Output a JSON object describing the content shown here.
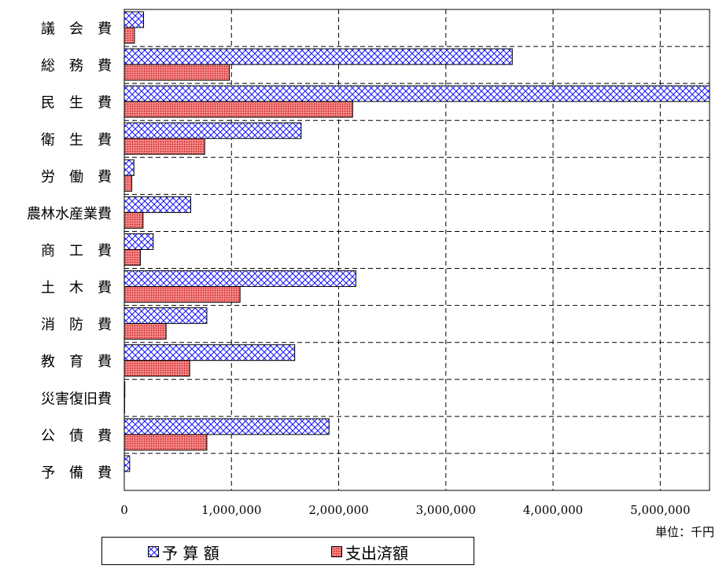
{
  "chart_data": {
    "type": "bar",
    "orientation": "horizontal",
    "categories": [
      "議　会　費",
      "総　務　費",
      "民　生　費",
      "衛　生　費",
      "労　働　費",
      "農林水産業費",
      "商　工　費",
      "土　木　費",
      "消　防　費",
      "教　育　費",
      "災害復旧費",
      "公　債　費",
      "予　備　費"
    ],
    "series": [
      {
        "name": "予 算 額",
        "pattern": "crosshatch",
        "color": "#1a1aff",
        "values": [
          180000,
          3620000,
          5460000,
          1650000,
          90000,
          620000,
          270000,
          2160000,
          770000,
          1590000,
          5000,
          1910000,
          50000
        ]
      },
      {
        "name": "支出済額",
        "pattern": "dotted",
        "color": "#e8323c",
        "values": [
          95000,
          980000,
          2130000,
          750000,
          70000,
          175000,
          150000,
          1080000,
          390000,
          610000,
          3000,
          770000,
          0
        ]
      }
    ],
    "xlim": [
      0,
      5460000
    ],
    "xticks": [
      0,
      1000000,
      2000000,
      3000000,
      4000000,
      5000000
    ],
    "xtick_labels": [
      "0",
      "1,000,000",
      "2,000,000",
      "3,000,000",
      "4,000,000",
      "5,000,000"
    ],
    "grid": true,
    "legend_placement": "bottom",
    "unit_label": "単位：千円"
  }
}
